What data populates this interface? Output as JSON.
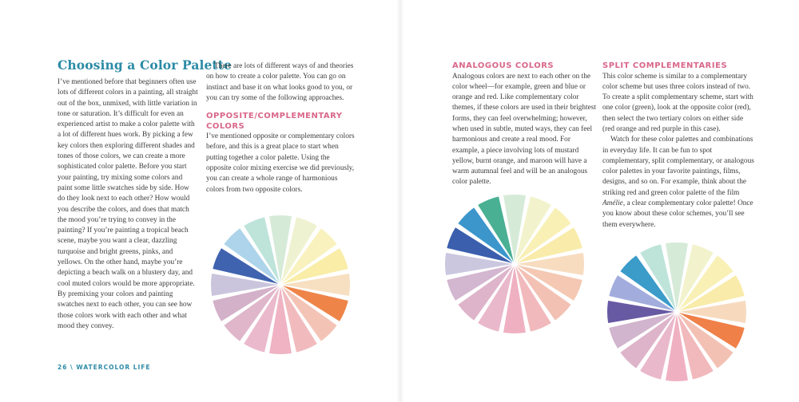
{
  "left_page": {
    "title": "Choosing a Color Palette",
    "intro": "I’ve mentioned before that beginners often use lots of different colors in a painting, all straight out of the box, unmixed, with little variation in tone or saturation. It’s difficult for even an experienced artist to make a color palette with a lot of different hues work. By picking a few key colors then exploring different shades and tones of those colors, we can create a more sophisticated color palette. Before you start your painting, try mixing some colors and paint some little swatches side by side. How do they look next to each other? How would you describe the colors, and does that match the mood you’re trying to convey in the painting? If you’re painting a tropical beach scene, maybe you want a clear, dazzling turquoise and bright greens, pinks, and yellows. On the other hand, maybe you’re depicting a beach walk on a blustery day, and cool muted colors would be more appropriate. By premixing your colors and painting swatches next to each other, you can see how those colors work with each other and what mood they convey.",
    "approaches": "There are lots of different ways of and theories on how to create a color palette. You can go on instinct and base it on what looks good to you, or you can try some of the following approaches.",
    "opposite_heading": "OPPOSITE/COMPLEMENTARY COLORS",
    "opposite_body": "I’ve mentioned opposite or complementary colors before, and this is a great place to start when putting together a color palette. Using the opposite color mixing exercise we did previously, you can create a whole range of harmonious colors from two opposite colors.",
    "footer": "26 \\ WATERCOLOR LIFE"
  },
  "right_page": {
    "analogous_heading": "ANALOGOUS COLORS",
    "analogous_body": "Analogous colors are next to each other on the color wheel—for example, green and blue or orange and red. Like complementary color themes, if these colors are used in their brightest forms, they can feel overwhelming; however, when used in subtle, muted ways, they can feel harmonious and create a real mood. For example, a piece involving lots of mustard yellow, burnt orange, and maroon will have a warm autumnal feel and will be an analogous color palette.",
    "split_heading": "SPLIT COMPLEMENTARIES",
    "split_body": "This color scheme is similar to a complementary color scheme but uses three colors instead of two. To create a split complementary scheme, start with one color (green), look at the opposite color (red), then select the two tertiary colors on either side (red orange and red purple in this case).",
    "watch_body_before": "Watch for these color palettes and combinations in everyday life. It can be fun to spot complementary, split complementary, or analogous color palettes in your favorite paintings, films, designs, and so on. For example, think about the striking red and green color palette of the film ",
    "film": "Amélie",
    "watch_body_after": ", a clear complementary color palette! Once you know about these color schemes, you’ll see them everywhere."
  },
  "colors": {
    "title": "#2c8ba6",
    "subheading": "#d9678a"
  },
  "wheels": {
    "complementary": [
      "#d3e8d5",
      "#eef1cc",
      "#f8f1b8",
      "#f9eba0",
      "#f6dcbc",
      "#ee7a3a",
      "#f2bfb0",
      "#f0b5b8",
      "#eeacbe",
      "#e8b4c8",
      "#dcb0c6",
      "#cfaac4",
      "#c6c0da",
      "#2f56a8",
      "#a6d0e8",
      "#b8e2d7"
    ],
    "analogous": [
      "#d3e8d5",
      "#f1f2c8",
      "#f9efb0",
      "#f8e9a2",
      "#f6d9bb",
      "#f3c3ad",
      "#f2bcae",
      "#f0b3b6",
      "#eeaabd",
      "#e7b2c6",
      "#dbaec5",
      "#cfb0cc",
      "#c5c2dc",
      "#2a51a6",
      "#2b8dc8",
      "#3aa98a"
    ],
    "split_complementary": [
      "#d3e8d5",
      "#f1f2c8",
      "#f9efb0",
      "#f8e9a2",
      "#f6d7b8",
      "#ee7538",
      "#f2bcae",
      "#f0b3b6",
      "#eeaabd",
      "#e7b2c6",
      "#dbaec5",
      "#cdaec9",
      "#5b4b9b",
      "#9aa6da",
      "#2a93c4",
      "#b8e2d7"
    ]
  }
}
